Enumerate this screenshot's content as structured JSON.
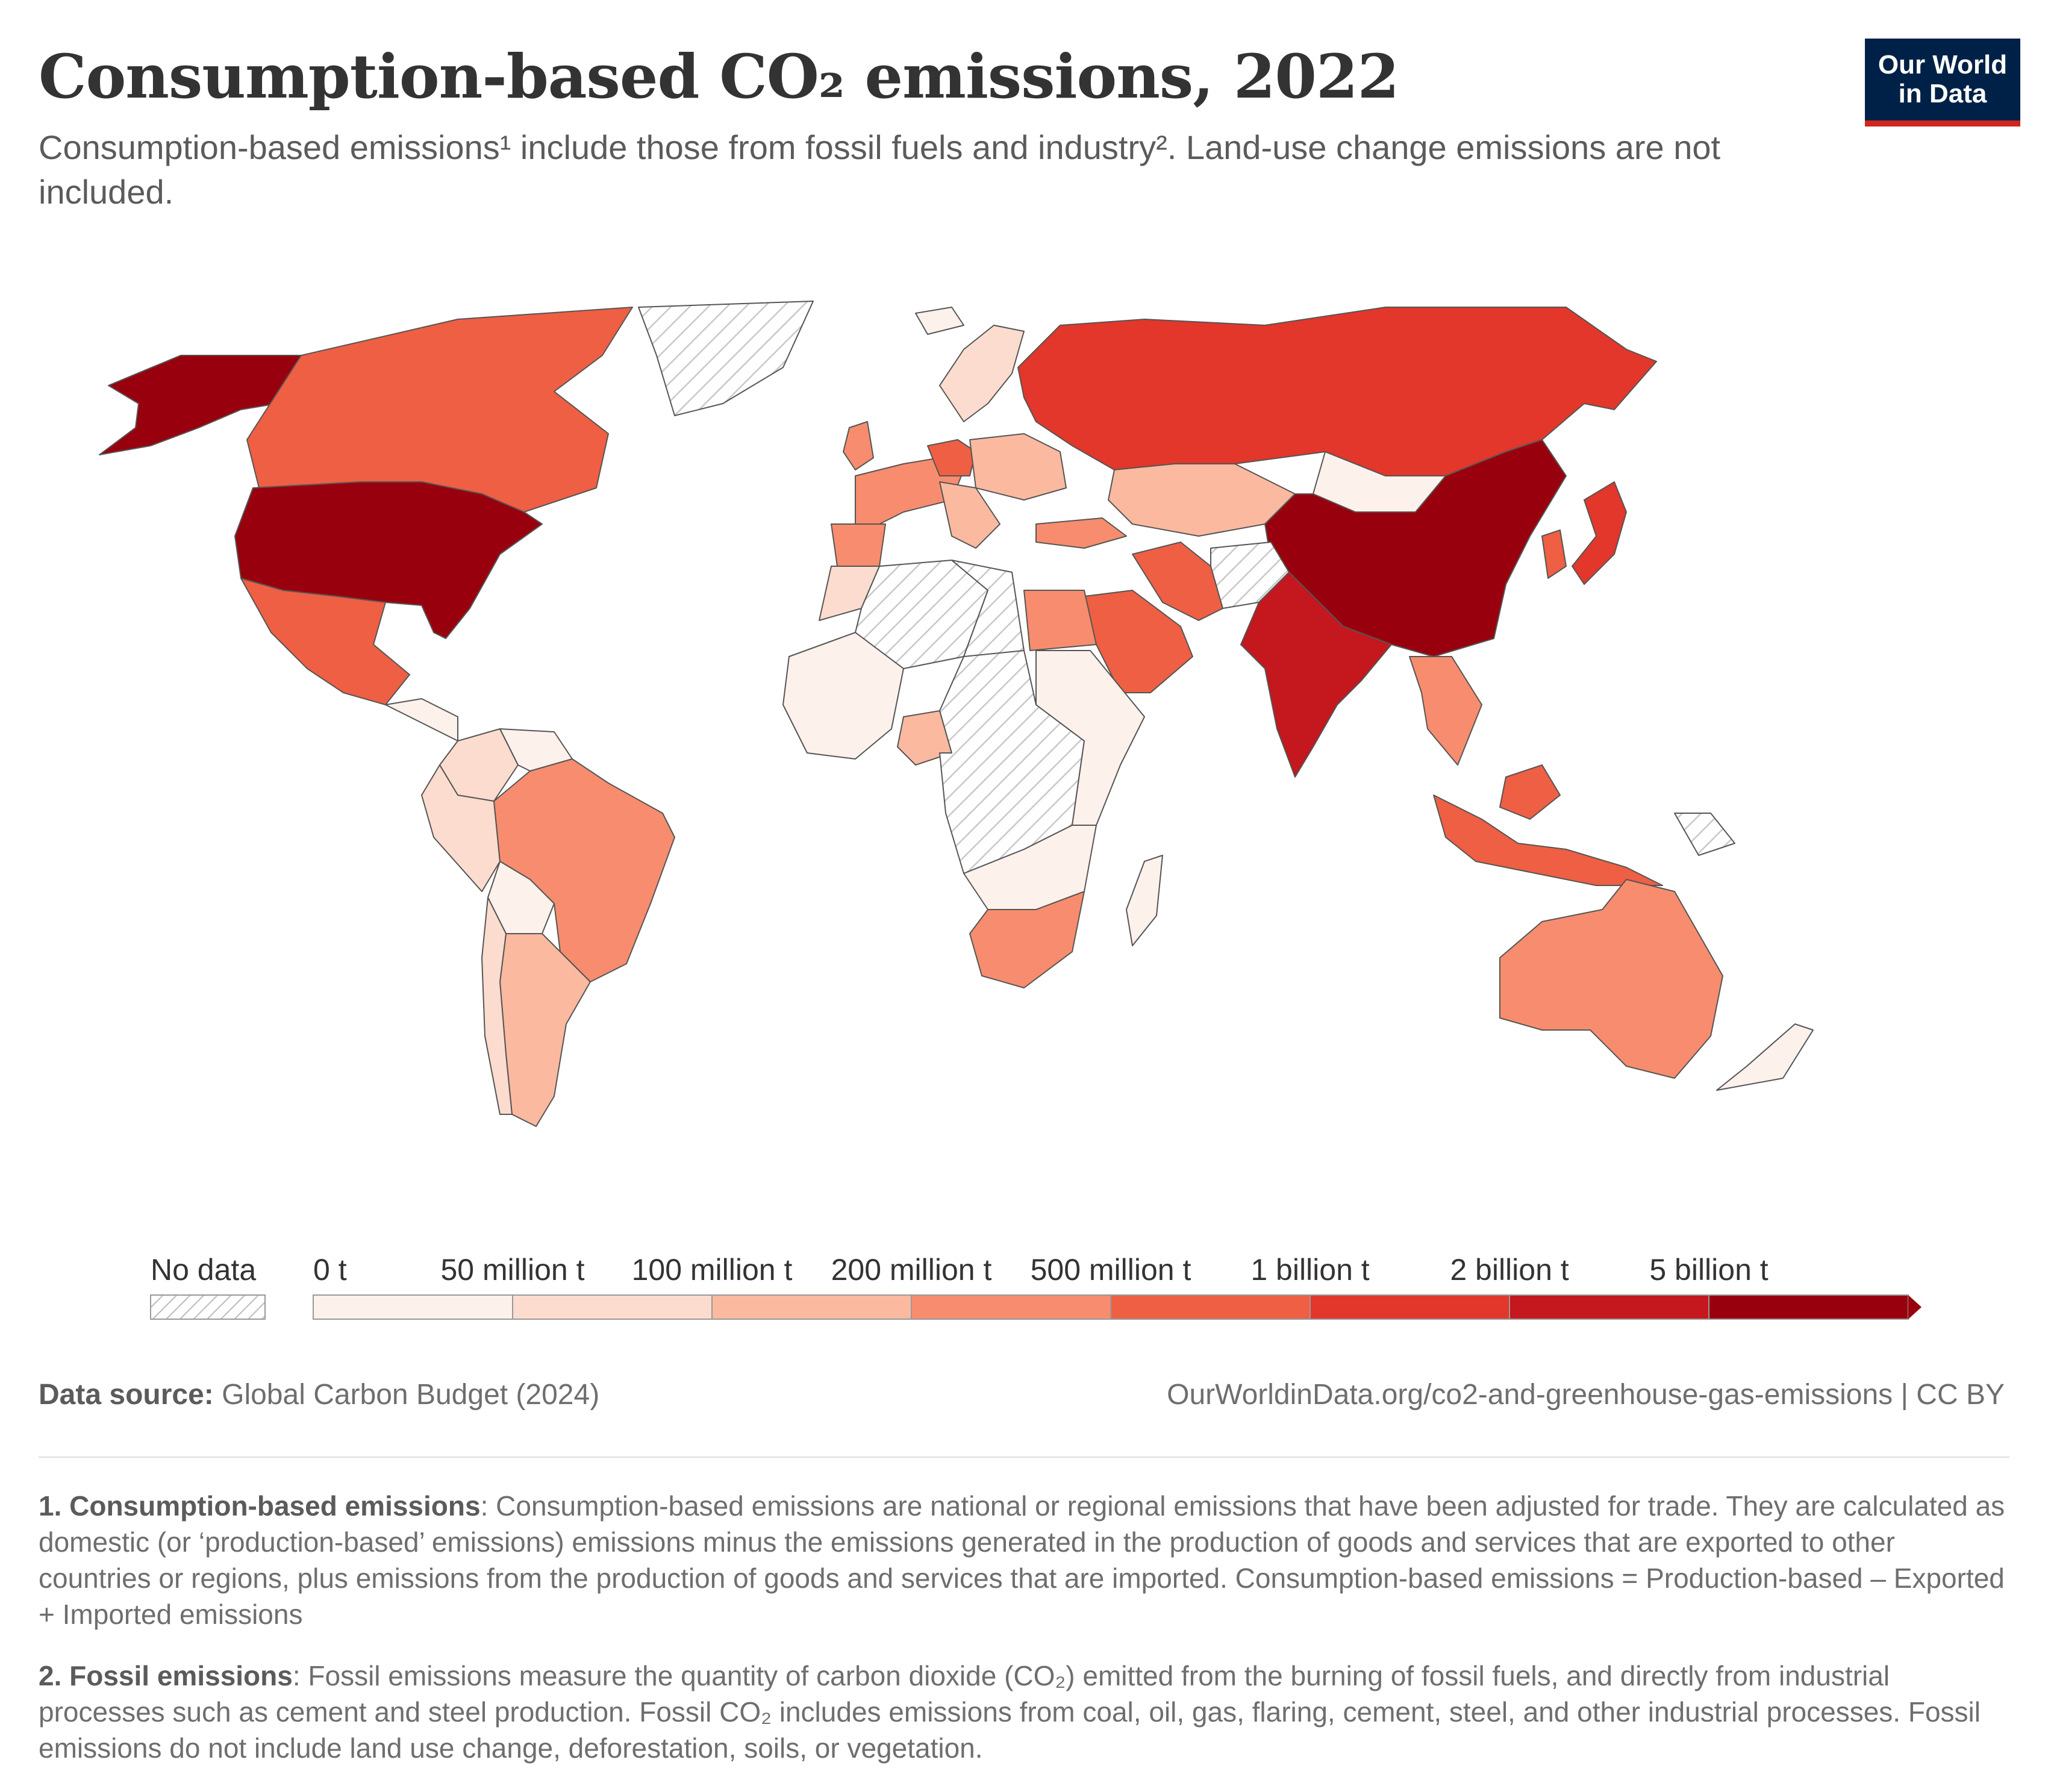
{
  "header": {
    "title": "Consumption-based CO₂ emissions, 2022",
    "subtitle": "Consumption-based emissions¹ include those from fossil fuels and industry². Land-use change emissions are not included.",
    "logo_line1": "Our World",
    "logo_line2": "in Data"
  },
  "legend": {
    "no_data_label": "No data",
    "bins": [
      "0 t",
      "50 million t",
      "100 million t",
      "200 million t",
      "500 million t",
      "1 billion t",
      "2 billion t",
      "5 billion t"
    ],
    "colors": [
      "#fdf1ec",
      "#fcdccf",
      "#fbb9a0",
      "#f78d6e",
      "#ef5f43",
      "#e2372a",
      "#c4171e",
      "#99000d"
    ],
    "no_data_color": "#e8e8e8"
  },
  "map": {
    "highlighted_regions": [
      {
        "name": "United States",
        "bin": 7
      },
      {
        "name": "China",
        "bin": 7
      },
      {
        "name": "India",
        "bin": 6
      },
      {
        "name": "Russia",
        "bin": 5
      },
      {
        "name": "Japan",
        "bin": 5
      },
      {
        "name": "Canada",
        "bin": 4
      },
      {
        "name": "Germany",
        "bin": 4
      },
      {
        "name": "Mexico",
        "bin": 4
      },
      {
        "name": "Saudi Arabia",
        "bin": 4
      },
      {
        "name": "Indonesia",
        "bin": 4
      },
      {
        "name": "South Korea",
        "bin": 4
      },
      {
        "name": "Iran",
        "bin": 4
      },
      {
        "name": "Brazil",
        "bin": 3
      },
      {
        "name": "Australia",
        "bin": 3
      },
      {
        "name": "South Africa",
        "bin": 3
      },
      {
        "name": "Egypt",
        "bin": 3
      },
      {
        "name": "Turkey",
        "bin": 3
      },
      {
        "name": "Kazakhstan",
        "bin": 2
      },
      {
        "name": "Argentina",
        "bin": 2
      },
      {
        "name": "Nigeria",
        "bin": 2
      },
      {
        "name": "Peru",
        "bin": 1
      },
      {
        "name": "Colombia",
        "bin": 1
      },
      {
        "name": "Mongolia",
        "bin": 0
      },
      {
        "name": "Bolivia",
        "bin": 0
      },
      {
        "name": "Algeria",
        "bin": -1
      },
      {
        "name": "Greenland",
        "bin": -1
      }
    ]
  },
  "footer": {
    "source_label": "Data source:",
    "source_text": "Global Carbon Budget (2024)",
    "url_text": "OurWorldinData.org/co2-and-greenhouse-gas-emissions | CC BY",
    "note1_title": "1. Consumption-based emissions",
    "note1_text": ": Consumption-based emissions are national or regional emissions that have been adjusted for trade. They are calculated as domestic (or ‘production-based’ emissions) emissions minus the emissions generated in the production of goods and services that are exported to other countries or regions, plus emissions from the production of goods and services that are imported. Consumption-based emissions = Production-based – Exported + Imported emissions",
    "note2_title": "2. Fossil emissions",
    "note2_text": ": Fossil emissions measure the quantity of carbon dioxide (CO₂) emitted from the burning of fossil fuels, and directly from industrial processes such as cement and steel production. Fossil CO₂ includes emissions from coal, oil, gas, flaring, cement, steel, and other industrial processes. Fossil emissions do not include land use change, deforestation, soils, or vegetation."
  }
}
